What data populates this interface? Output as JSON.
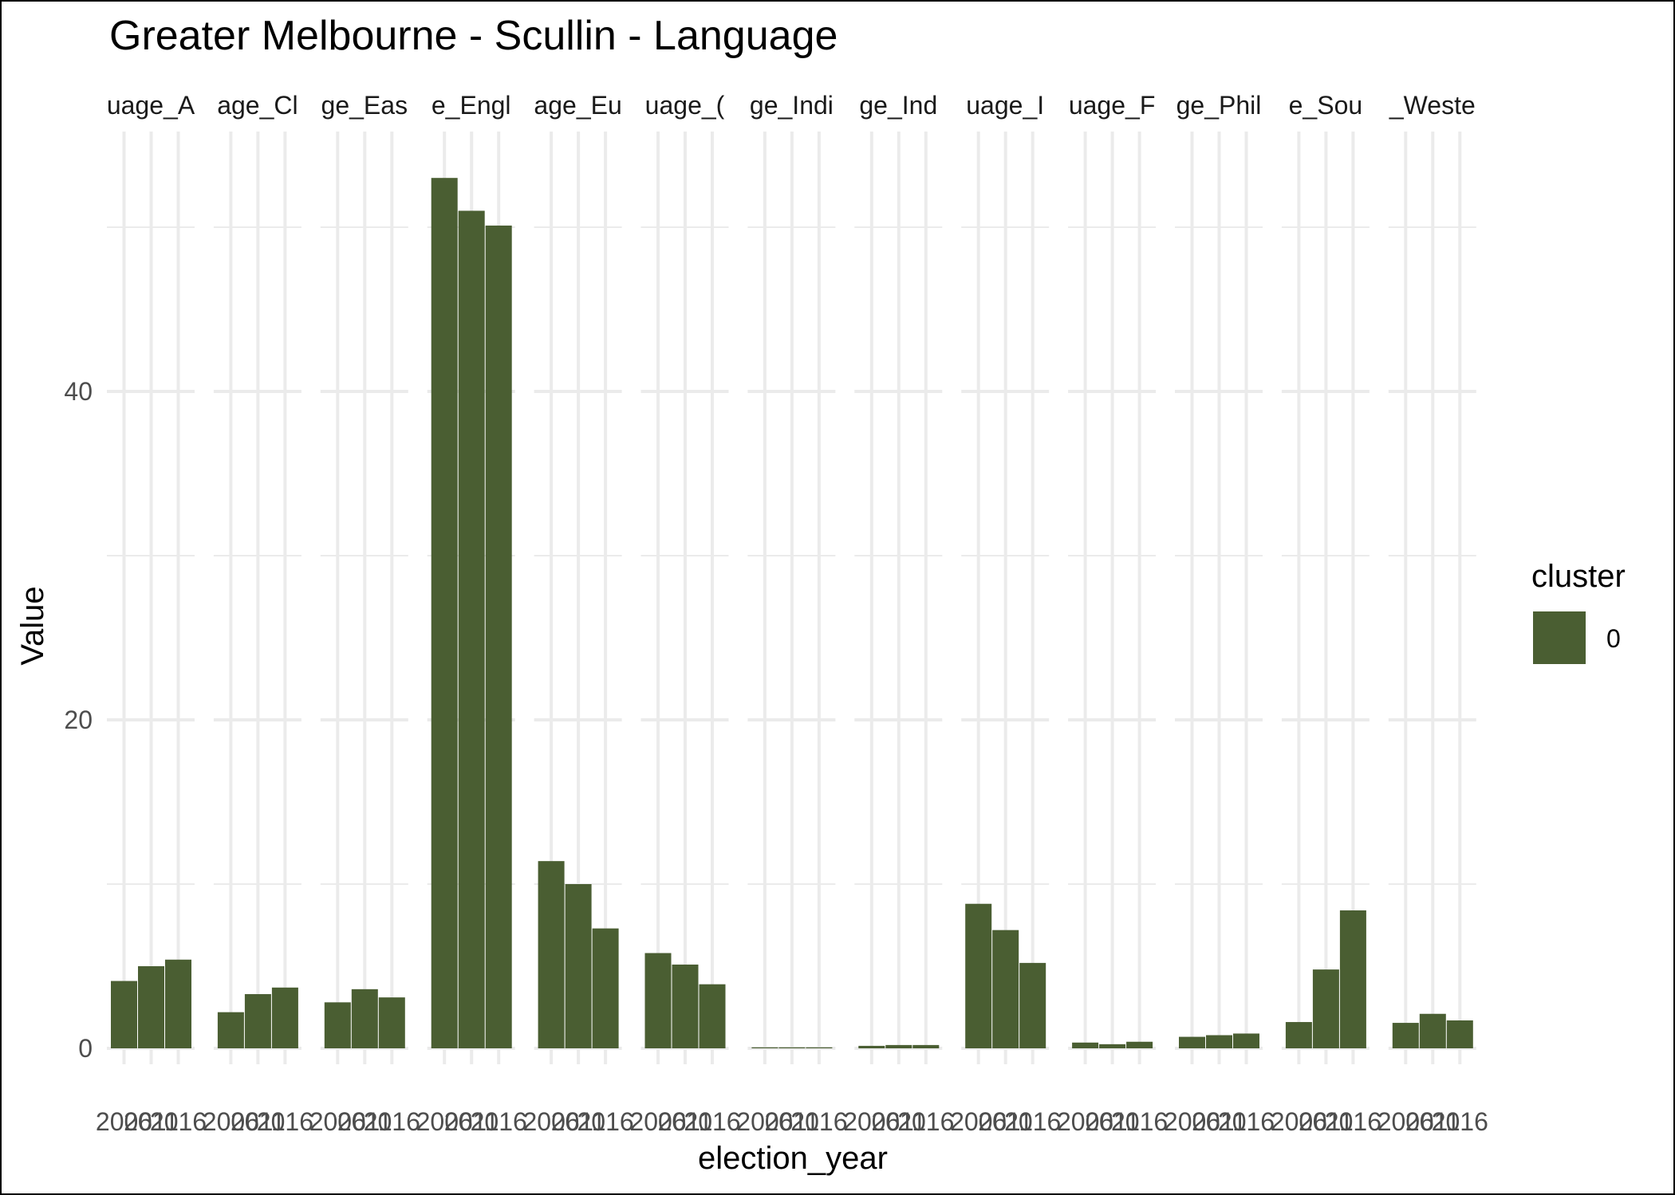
{
  "chart_data": {
    "type": "bar",
    "title": "Greater Melbourne - Scullin - Language",
    "xlabel": "election_year",
    "ylabel": "Value",
    "ylim": [
      -1.5,
      54
    ],
    "yticks": [
      0,
      20,
      40
    ],
    "grid": true,
    "legend": {
      "title": "cluster",
      "placement": "right",
      "entries": [
        {
          "label": "0",
          "color": "#4a5e32"
        }
      ]
    },
    "bar_color": "#4a5e32",
    "years": [
      "2006",
      "2011",
      "2016"
    ],
    "xtick_labels": [
      "2006",
      "2011",
      "2016"
    ],
    "panels": [
      {
        "strip_label": "uage_A",
        "values": [
          4.1,
          5.0,
          5.4
        ]
      },
      {
        "strip_label": "age_Cl",
        "values": [
          2.2,
          3.3,
          3.7
        ]
      },
      {
        "strip_label": "ge_Eas",
        "values": [
          2.8,
          3.6,
          3.1
        ]
      },
      {
        "strip_label": "e_Engl",
        "values": [
          53.0,
          51.0,
          50.1
        ]
      },
      {
        "strip_label": "age_Eu",
        "values": [
          11.4,
          10.0,
          7.3
        ]
      },
      {
        "strip_label": "uage_(",
        "values": [
          5.8,
          5.1,
          3.9
        ]
      },
      {
        "strip_label": "ge_Indi",
        "values": [
          0.05,
          0.05,
          0.05
        ]
      },
      {
        "strip_label": "ge_Ind",
        "values": [
          0.15,
          0.2,
          0.2
        ]
      },
      {
        "strip_label": "uage_I",
        "values": [
          8.8,
          7.2,
          5.2
        ]
      },
      {
        "strip_label": "uage_F",
        "values": [
          0.35,
          0.25,
          0.4
        ]
      },
      {
        "strip_label": "ge_Phil",
        "values": [
          0.7,
          0.8,
          0.9
        ]
      },
      {
        "strip_label": "e_Sou",
        "values": [
          1.6,
          4.8,
          8.4
        ]
      },
      {
        "strip_label": "_Weste",
        "values": [
          1.55,
          2.1,
          1.7
        ]
      }
    ]
  }
}
